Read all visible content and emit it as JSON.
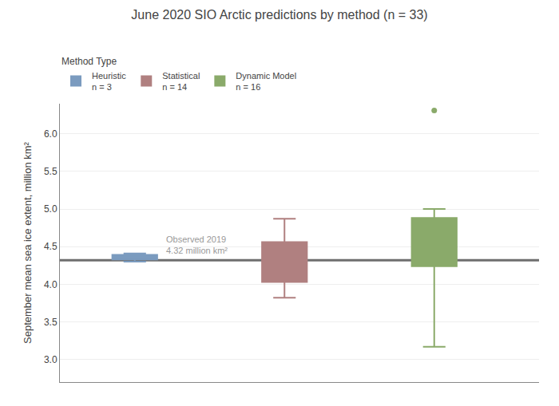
{
  "chart_data": {
    "type": "box",
    "title": "June 2020 SIO Arctic predictions by method (n = 33)",
    "ylabel": "September mean sea ice extent, million km²",
    "legend_title": "Method Type",
    "series": [
      {
        "name": "Heuristic\nn = 3",
        "color": "#7b9bbf",
        "whisker_low": 4.3,
        "q1": 4.33,
        "median": 4.36,
        "q3": 4.39,
        "whisker_high": 4.41,
        "outliers": []
      },
      {
        "name": "Statistical\nn = 14",
        "color": "#b08080",
        "whisker_low": 3.82,
        "q1": 4.03,
        "median": 4.3,
        "q3": 4.56,
        "whisker_high": 4.87,
        "outliers": []
      },
      {
        "name": "Dynamic Model\nn = 16",
        "color": "#8aaa6a",
        "whisker_low": 3.17,
        "q1": 4.24,
        "median": 4.38,
        "q3": 4.88,
        "whisker_high": 5.0,
        "outliers": [
          6.31
        ]
      }
    ],
    "reference_line": {
      "value": 4.32,
      "color": "#6e6e6e"
    },
    "annotations": [
      {
        "text": "Observed 2019",
        "color": "#999999"
      },
      {
        "text": "4.32 million km²",
        "color": "#999999"
      }
    ],
    "ylim": [
      2.7,
      6.4
    ],
    "yticks": [
      {
        "value": 3,
        "label": "3.0"
      },
      3.5,
      {
        "value": 4,
        "label": "4.0"
      },
      4.5,
      {
        "value": 5,
        "label": "5.0"
      },
      5.5,
      {
        "value": 6,
        "label": "6.0"
      }
    ],
    "grid": true,
    "tick_labels": "y"
  }
}
